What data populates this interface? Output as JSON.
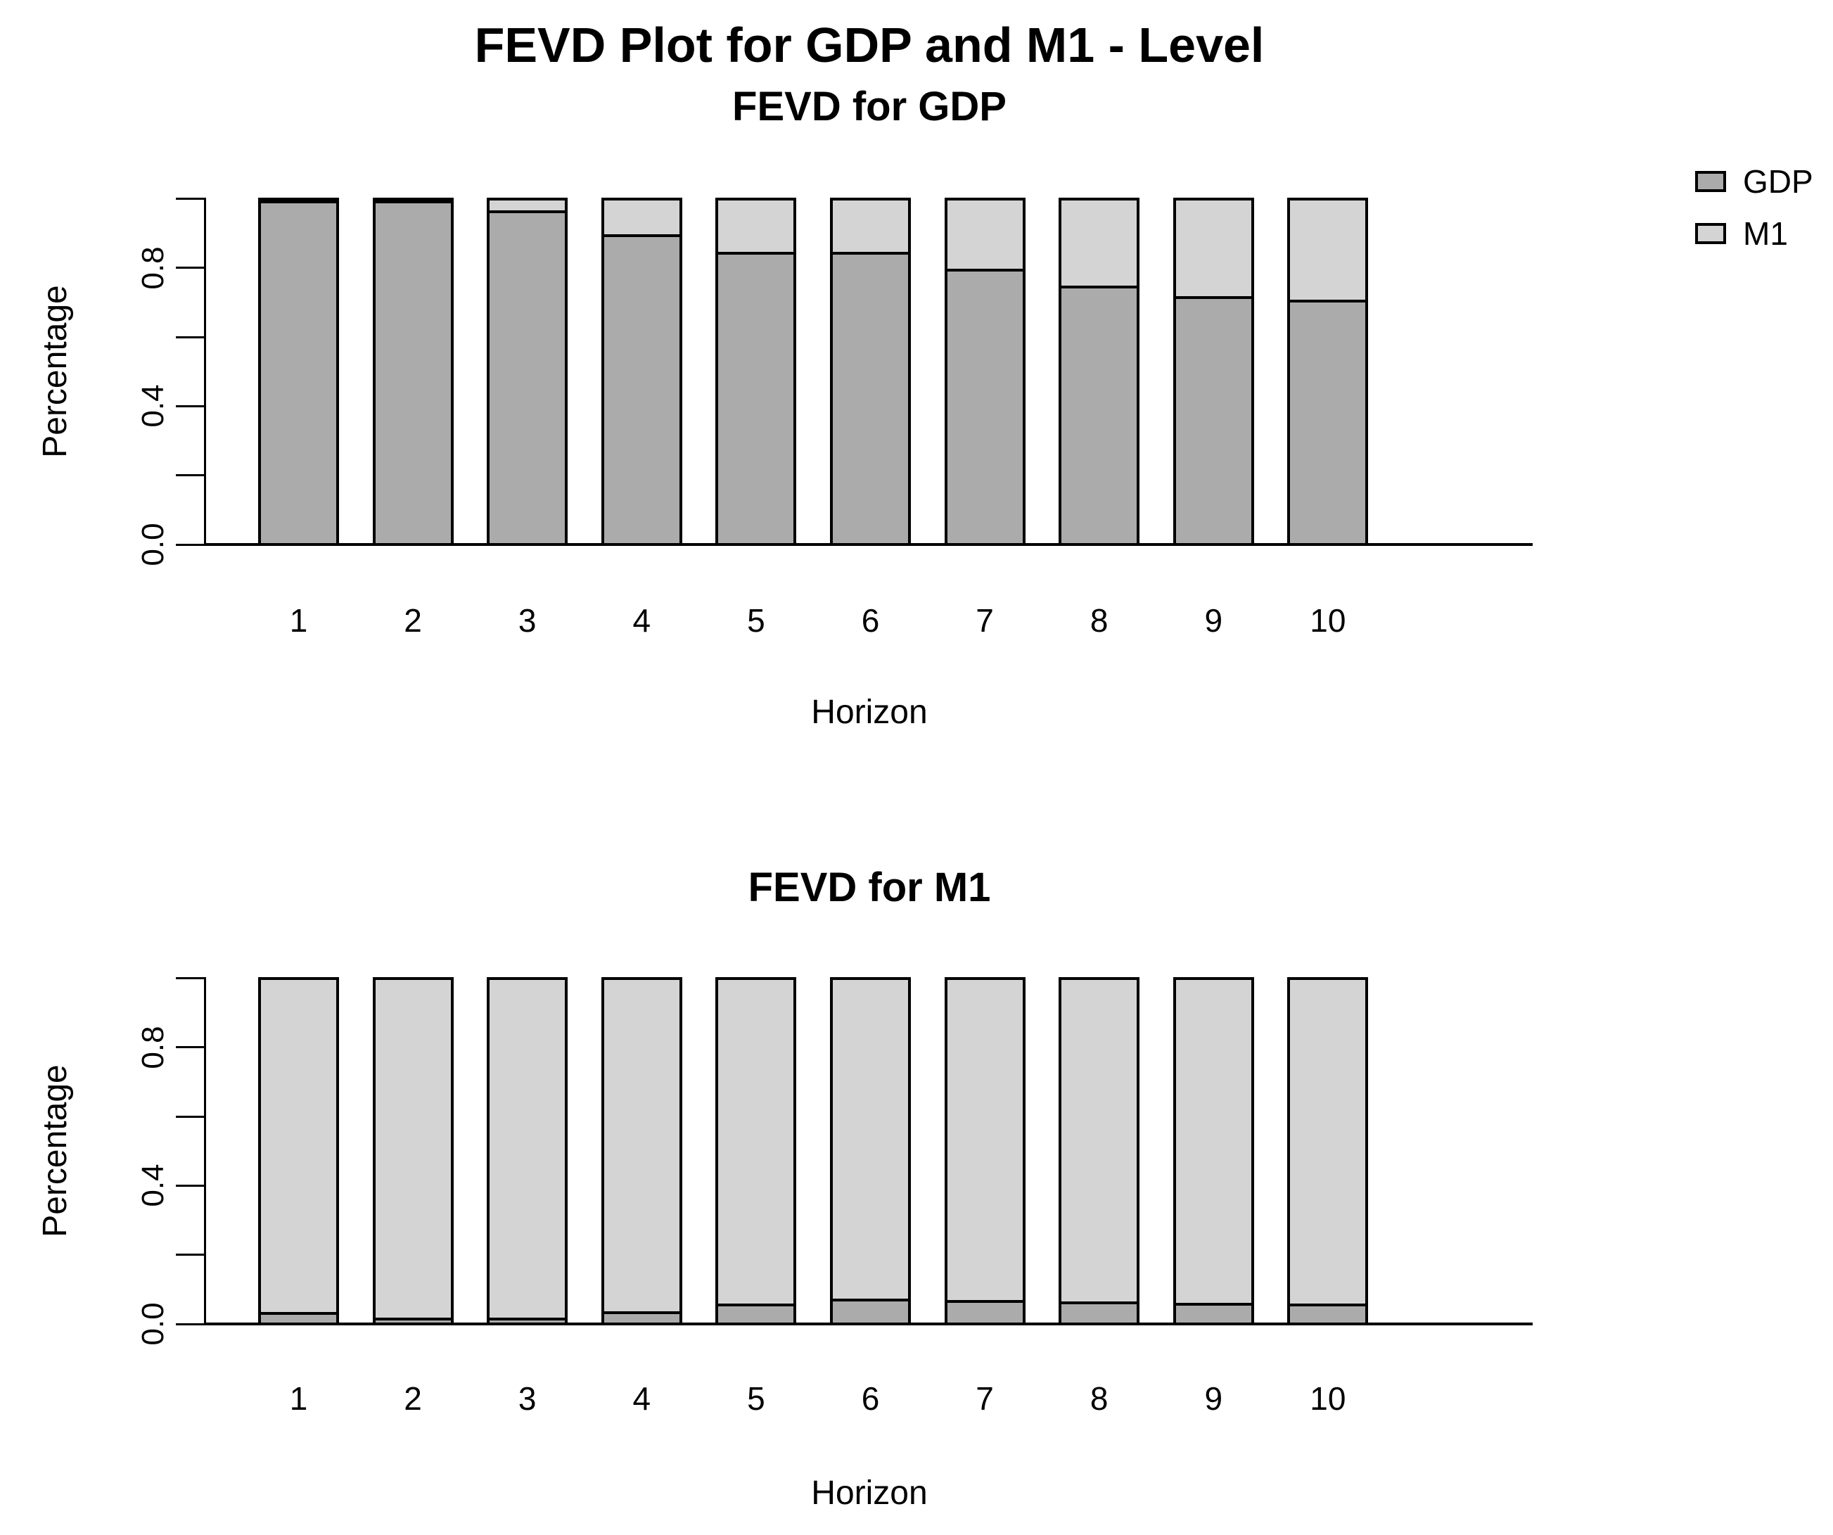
{
  "header": {
    "title": "FEVD Plot for GDP and M1 - Level"
  },
  "axis": {
    "ytick_labels": [
      "0.0",
      "",
      "0.4",
      "",
      "0.8",
      ""
    ],
    "yticks": [
      0.0,
      0.2,
      0.4,
      0.6,
      0.8,
      1.0
    ]
  },
  "legend": {
    "items": [
      {
        "label": "GDP",
        "color": "#ababab"
      },
      {
        "label": "M1",
        "color": "#d4d4d4"
      }
    ]
  },
  "colors": {
    "gdp_fill": "#ababab",
    "m1_fill": "#d4d4d4",
    "border": "#000000",
    "background": "#ffffff"
  },
  "chart_data": [
    {
      "type": "bar",
      "stacked": true,
      "title": "FEVD for GDP",
      "xlabel": "Horizon",
      "ylabel": "Percentage",
      "categories": [
        "1",
        "2",
        "3",
        "4",
        "5",
        "6",
        "7",
        "8",
        "9",
        "10"
      ],
      "series": [
        {
          "name": "GDP",
          "color": "#ababab",
          "values": [
            1.0,
            1.0,
            0.97,
            0.9,
            0.85,
            0.85,
            0.8,
            0.75,
            0.72,
            0.71
          ]
        },
        {
          "name": "M1",
          "color": "#d4d4d4",
          "values": [
            0.0,
            0.0,
            0.03,
            0.1,
            0.15,
            0.15,
            0.2,
            0.25,
            0.28,
            0.29
          ]
        }
      ],
      "ylim": [
        0,
        1
      ],
      "yticks": [
        0.0,
        0.2,
        0.4,
        0.6,
        0.8,
        1.0
      ],
      "ytick_labels": [
        "0.0",
        "",
        "0.4",
        "",
        "0.8",
        ""
      ],
      "grid": false,
      "legend_position": "top-right"
    },
    {
      "type": "bar",
      "stacked": true,
      "title": "FEVD for M1",
      "xlabel": "Horizon",
      "ylabel": "Percentage",
      "categories": [
        "1",
        "2",
        "3",
        "4",
        "5",
        "6",
        "7",
        "8",
        "9",
        "10"
      ],
      "series": [
        {
          "name": "GDP",
          "color": "#ababab",
          "values": [
            0.03,
            0.015,
            0.015,
            0.033,
            0.056,
            0.07,
            0.066,
            0.062,
            0.057,
            0.056
          ]
        },
        {
          "name": "M1",
          "color": "#d4d4d4",
          "values": [
            0.97,
            0.985,
            0.985,
            0.967,
            0.944,
            0.93,
            0.934,
            0.938,
            0.943,
            0.944
          ]
        }
      ],
      "ylim": [
        0,
        1
      ],
      "yticks": [
        0.0,
        0.2,
        0.4,
        0.6,
        0.8,
        1.0
      ],
      "ytick_labels": [
        "0.0",
        "",
        "0.4",
        "",
        "0.8",
        ""
      ],
      "grid": false,
      "legend_position": "none"
    }
  ]
}
